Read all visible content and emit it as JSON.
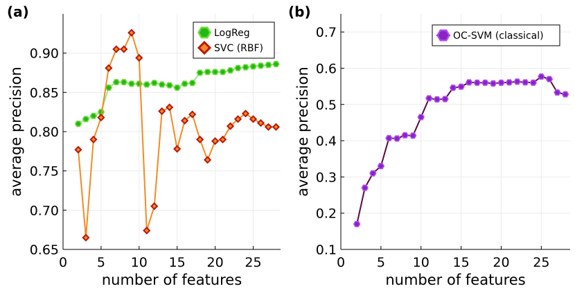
{
  "chart_data": [
    {
      "panel_label": "(a)",
      "type": "line",
      "xlabel": "number of features",
      "ylabel": "average precision",
      "xlim": [
        0,
        28.6
      ],
      "ylim": [
        0.65,
        0.95
      ],
      "xticks": [
        0,
        5,
        10,
        15,
        20,
        25
      ],
      "xtick_labels": [
        "0",
        "5",
        "10",
        "15",
        "20",
        "25"
      ],
      "yticks": [
        0.65,
        0.7,
        0.75,
        0.8,
        0.85,
        0.9
      ],
      "ytick_labels": [
        "0.65",
        "0.70",
        "0.75",
        "0.80",
        "0.85",
        "0.90"
      ],
      "grid": true,
      "legend_position": "top-right",
      "series": [
        {
          "name": "LogReg",
          "line_color": "#9be88f",
          "marker": "hexagon",
          "marker_fill": "#22b814",
          "marker_edge": "#6fdc3a",
          "x": [
            2,
            3,
            4,
            5,
            6,
            7,
            8,
            9,
            10,
            11,
            12,
            13,
            14,
            15,
            16,
            17,
            18,
            19,
            20,
            21,
            22,
            23,
            24,
            25,
            26,
            27,
            28
          ],
          "values": [
            0.81,
            0.816,
            0.82,
            0.825,
            0.856,
            0.863,
            0.863,
            0.861,
            0.861,
            0.86,
            0.862,
            0.86,
            0.859,
            0.856,
            0.861,
            0.862,
            0.875,
            0.876,
            0.876,
            0.876,
            0.878,
            0.881,
            0.882,
            0.883,
            0.884,
            0.885,
            0.886
          ]
        },
        {
          "name": "SVC (RBF)",
          "line_color": "#f48a22",
          "marker": "diamond",
          "marker_fill": "#f48a22",
          "marker_edge": "#b8170f",
          "x": [
            2,
            3,
            4,
            5,
            6,
            7,
            8,
            9,
            10,
            11,
            12,
            13,
            14,
            15,
            16,
            17,
            18,
            19,
            20,
            21,
            22,
            23,
            24,
            25,
            26,
            27,
            28
          ],
          "values": [
            0.777,
            0.665,
            0.79,
            0.818,
            0.881,
            0.905,
            0.905,
            0.926,
            0.894,
            0.674,
            0.705,
            0.826,
            0.831,
            0.778,
            0.814,
            0.822,
            0.79,
            0.764,
            0.788,
            0.79,
            0.807,
            0.816,
            0.823,
            0.816,
            0.811,
            0.806,
            0.806
          ]
        }
      ]
    },
    {
      "panel_label": "(b)",
      "type": "line",
      "xlabel": "number of features",
      "ylabel": "average precision",
      "xlim": [
        0,
        28.6
      ],
      "ylim": [
        0.1,
        0.75
      ],
      "xticks": [
        0,
        5,
        10,
        15,
        20,
        25
      ],
      "xtick_labels": [
        "0",
        "5",
        "10",
        "15",
        "20",
        "25"
      ],
      "yticks": [
        0.1,
        0.2,
        0.3,
        0.4,
        0.5,
        0.6,
        0.7
      ],
      "ytick_labels": [
        "0.1",
        "0.2",
        "0.3",
        "0.4",
        "0.5",
        "0.6",
        "0.7"
      ],
      "grid": true,
      "legend_position": "top-right",
      "series": [
        {
          "name": "OC-SVM (classical)",
          "line_color": "#5c0a3a",
          "marker": "hexagon",
          "marker_fill": "#8a22c4",
          "marker_edge": "#b04ef0",
          "x": [
            2,
            3,
            4,
            5,
            6,
            7,
            8,
            9,
            10,
            11,
            12,
            13,
            14,
            15,
            16,
            17,
            18,
            19,
            20,
            21,
            22,
            23,
            24,
            25,
            26,
            27,
            28
          ],
          "values": [
            0.17,
            0.27,
            0.31,
            0.33,
            0.407,
            0.406,
            0.415,
            0.414,
            0.465,
            0.517,
            0.514,
            0.515,
            0.546,
            0.549,
            0.561,
            0.56,
            0.56,
            0.558,
            0.56,
            0.561,
            0.563,
            0.561,
            0.56,
            0.577,
            0.57,
            0.533,
            0.528
          ]
        }
      ]
    }
  ]
}
